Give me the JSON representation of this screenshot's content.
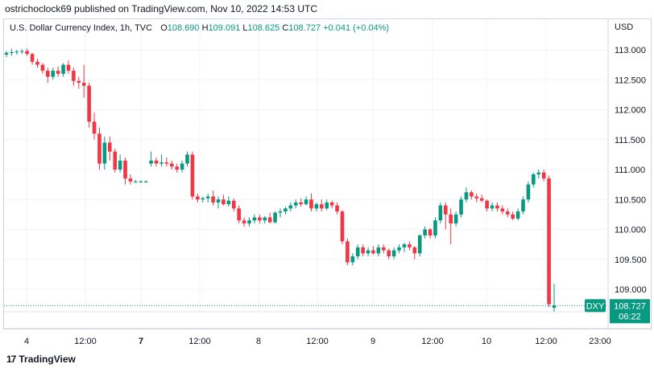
{
  "publisher_line": "ostrichoclock69 published on TradingView.com, Nov 10, 2022 14:53 UTC",
  "legend": {
    "symbol": "U.S. Dollar Currency Index, 1h, TVC",
    "open_label": "O",
    "open": "108.690",
    "high_label": "H",
    "high": "109.091",
    "low_label": "L",
    "low": "108.625",
    "close_label": "C",
    "close": "108.727",
    "change": "+0.041 (+0.04%)"
  },
  "axis_unit": "USD",
  "price_tag": {
    "ticker": "DXY",
    "price": "108.727",
    "countdown": "06:22"
  },
  "footer": {
    "logo_text": "TradingView"
  },
  "colors": {
    "up": "#089981",
    "down": "#f23645",
    "grid": "#f0f3fa",
    "text": "#131722"
  },
  "chart_data": {
    "type": "candlestick",
    "y_ticks": [
      "113.000",
      "112.500",
      "112.000",
      "111.500",
      "111.000",
      "110.500",
      "110.000",
      "109.500",
      "109.000"
    ],
    "ylim": [
      108.45,
      113.25
    ],
    "x_tick_labels": [
      "4",
      "12:00",
      "7",
      "12:00",
      "8",
      "12:00",
      "9",
      "12:00",
      "10",
      "12:00",
      "23:00"
    ],
    "last_price": 108.727,
    "candles": [
      [
        112.92,
        112.98,
        112.88,
        112.95
      ],
      [
        112.95,
        113.02,
        112.9,
        112.96
      ],
      [
        112.96,
        113.0,
        112.92,
        112.97
      ],
      [
        112.97,
        113.01,
        112.93,
        112.98
      ],
      [
        112.98,
        113.02,
        112.9,
        112.93
      ],
      [
        112.93,
        112.95,
        112.75,
        112.8
      ],
      [
        112.8,
        112.85,
        112.7,
        112.75
      ],
      [
        112.75,
        112.78,
        112.6,
        112.65
      ],
      [
        112.65,
        112.7,
        112.45,
        112.55
      ],
      [
        112.55,
        112.7,
        112.5,
        112.65
      ],
      [
        112.65,
        112.72,
        112.55,
        112.6
      ],
      [
        112.6,
        112.78,
        112.55,
        112.75
      ],
      [
        112.75,
        112.82,
        112.6,
        112.65
      ],
      [
        112.65,
        112.7,
        112.4,
        112.48
      ],
      [
        112.48,
        112.55,
        112.35,
        112.45
      ],
      [
        112.45,
        112.75,
        112.2,
        112.4
      ],
      [
        112.4,
        112.45,
        111.7,
        111.8
      ],
      [
        111.8,
        111.95,
        111.5,
        111.6
      ],
      [
        111.6,
        111.7,
        111.0,
        111.1
      ],
      [
        111.1,
        111.55,
        111.0,
        111.45
      ],
      [
        111.45,
        111.55,
        111.15,
        111.3
      ],
      [
        111.3,
        111.35,
        110.95,
        111.0
      ],
      [
        111.0,
        111.25,
        110.95,
        111.15
      ],
      [
        111.15,
        111.2,
        110.75,
        110.85
      ],
      [
        110.85,
        110.92,
        110.75,
        110.8
      ],
      [
        110.8,
        110.83,
        110.78,
        110.8
      ],
      [
        110.8,
        110.82,
        110.78,
        110.8
      ],
      [
        110.8,
        110.82,
        110.78,
        110.8
      ],
      [
        111.1,
        111.3,
        111.05,
        111.15
      ],
      [
        111.15,
        111.2,
        111.05,
        111.1
      ],
      [
        111.1,
        111.25,
        111.05,
        111.12
      ],
      [
        111.12,
        111.2,
        111.05,
        111.1
      ],
      [
        111.1,
        111.15,
        111.0,
        111.05
      ],
      [
        111.05,
        111.1,
        110.95,
        111.0
      ],
      [
        111.0,
        111.15,
        110.95,
        111.1
      ],
      [
        111.1,
        111.3,
        111.05,
        111.25
      ],
      [
        111.25,
        111.3,
        110.5,
        110.55
      ],
      [
        110.55,
        110.6,
        110.45,
        110.5
      ],
      [
        110.5,
        110.55,
        110.45,
        110.52
      ],
      [
        110.52,
        110.6,
        110.45,
        110.55
      ],
      [
        110.55,
        110.65,
        110.4,
        110.45
      ],
      [
        110.45,
        110.55,
        110.35,
        110.5
      ],
      [
        110.5,
        110.58,
        110.4,
        110.42
      ],
      [
        110.42,
        110.55,
        110.38,
        110.48
      ],
      [
        110.48,
        110.52,
        110.3,
        110.35
      ],
      [
        110.35,
        110.4,
        110.1,
        110.15
      ],
      [
        110.15,
        110.2,
        110.05,
        110.1
      ],
      [
        110.1,
        110.2,
        110.05,
        110.15
      ],
      [
        110.15,
        110.25,
        110.1,
        110.2
      ],
      [
        110.2,
        110.25,
        110.1,
        110.15
      ],
      [
        110.15,
        110.22,
        110.1,
        110.2
      ],
      [
        110.2,
        110.28,
        110.1,
        110.12
      ],
      [
        110.12,
        110.3,
        110.1,
        110.28
      ],
      [
        110.28,
        110.35,
        110.2,
        110.3
      ],
      [
        110.3,
        110.38,
        110.25,
        110.35
      ],
      [
        110.35,
        110.45,
        110.3,
        110.4
      ],
      [
        110.4,
        110.5,
        110.35,
        110.45
      ],
      [
        110.45,
        110.52,
        110.38,
        110.42
      ],
      [
        110.42,
        110.55,
        110.4,
        110.5
      ],
      [
        110.5,
        110.6,
        110.3,
        110.35
      ],
      [
        110.35,
        110.45,
        110.3,
        110.42
      ],
      [
        110.42,
        110.5,
        110.3,
        110.35
      ],
      [
        110.35,
        110.5,
        110.32,
        110.45
      ],
      [
        110.45,
        110.48,
        110.35,
        110.4
      ],
      [
        110.4,
        110.45,
        110.25,
        110.3
      ],
      [
        110.3,
        110.32,
        109.75,
        109.8
      ],
      [
        109.8,
        109.85,
        109.4,
        109.45
      ],
      [
        109.45,
        109.6,
        109.4,
        109.55
      ],
      [
        109.55,
        109.75,
        109.5,
        109.7
      ],
      [
        109.7,
        109.75,
        109.55,
        109.6
      ],
      [
        109.6,
        109.7,
        109.55,
        109.65
      ],
      [
        109.65,
        109.72,
        109.58,
        109.6
      ],
      [
        109.6,
        109.75,
        109.55,
        109.7
      ],
      [
        109.7,
        109.75,
        109.6,
        109.65
      ],
      [
        109.65,
        109.68,
        109.5,
        109.55
      ],
      [
        109.55,
        109.7,
        109.5,
        109.65
      ],
      [
        109.65,
        109.75,
        109.6,
        109.7
      ],
      [
        109.7,
        109.78,
        109.62,
        109.75
      ],
      [
        109.75,
        109.8,
        109.65,
        109.7
      ],
      [
        109.7,
        109.72,
        109.5,
        109.6
      ],
      [
        109.6,
        109.92,
        109.55,
        109.9
      ],
      [
        109.9,
        110.05,
        109.85,
        110.0
      ],
      [
        110.0,
        110.02,
        109.85,
        109.9
      ],
      [
        109.9,
        110.2,
        109.85,
        110.15
      ],
      [
        110.15,
        110.45,
        110.1,
        110.4
      ],
      [
        110.4,
        110.45,
        110.0,
        110.25
      ],
      [
        110.25,
        110.35,
        109.75,
        110.1
      ],
      [
        110.1,
        110.3,
        110.05,
        110.25
      ],
      [
        110.25,
        110.55,
        110.2,
        110.5
      ],
      [
        110.5,
        110.7,
        110.45,
        110.62
      ],
      [
        110.62,
        110.65,
        110.5,
        110.55
      ],
      [
        110.55,
        110.6,
        110.45,
        110.52
      ],
      [
        110.52,
        110.58,
        110.45,
        110.48
      ],
      [
        110.48,
        110.5,
        110.3,
        110.35
      ],
      [
        110.35,
        110.45,
        110.3,
        110.4
      ],
      [
        110.4,
        110.45,
        110.3,
        110.35
      ],
      [
        110.35,
        110.4,
        110.25,
        110.3
      ],
      [
        110.3,
        110.35,
        110.2,
        110.25
      ],
      [
        110.25,
        110.3,
        110.15,
        110.18
      ],
      [
        110.18,
        110.35,
        110.15,
        110.3
      ],
      [
        110.3,
        110.55,
        110.25,
        110.5
      ],
      [
        110.5,
        110.8,
        110.45,
        110.75
      ],
      [
        110.75,
        110.95,
        110.7,
        110.92
      ],
      [
        110.92,
        111.0,
        110.85,
        110.95
      ],
      [
        110.95,
        111.0,
        110.8,
        110.85
      ],
      [
        110.85,
        110.9,
        108.7,
        108.75
      ],
      [
        108.69,
        109.09,
        108.63,
        108.73
      ]
    ]
  }
}
